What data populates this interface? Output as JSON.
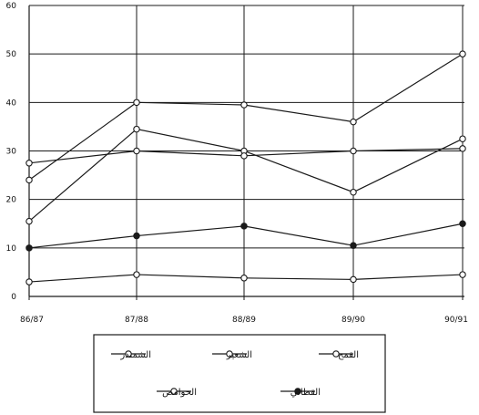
{
  "chart_data": {
    "type": "line",
    "categories": [
      "86/87",
      "87/88",
      "88/89",
      "89/90",
      "90/91"
    ],
    "ylim": [
      0,
      60
    ],
    "yticks": [
      0,
      10,
      20,
      30,
      40,
      50,
      60
    ],
    "grid": true,
    "legend_position": "bottom",
    "series": [
      {
        "name": "القمح",
        "marker": "open-circle",
        "values": [
          24,
          40,
          39.5,
          36,
          50
        ]
      },
      {
        "name": "الشعير",
        "marker": "open-circle",
        "values": [
          15.5,
          34.5,
          30,
          21.5,
          32.5
        ]
      },
      {
        "name": "الشمندر",
        "marker": "open-circle",
        "values": [
          27.5,
          30,
          29,
          30,
          30.5
        ]
      },
      {
        "name": "الحوامض",
        "marker": "open-circle",
        "values": [
          3,
          4.5,
          3.8,
          3.5,
          4.5
        ]
      },
      {
        "name": "القطاني",
        "marker": "filled-circle",
        "values": [
          10,
          12.5,
          14.5,
          10.5,
          15
        ]
      }
    ]
  },
  "colors": {
    "line": "#1a1a1a",
    "grid": "#1a1a1a",
    "background": "#ffffff"
  }
}
